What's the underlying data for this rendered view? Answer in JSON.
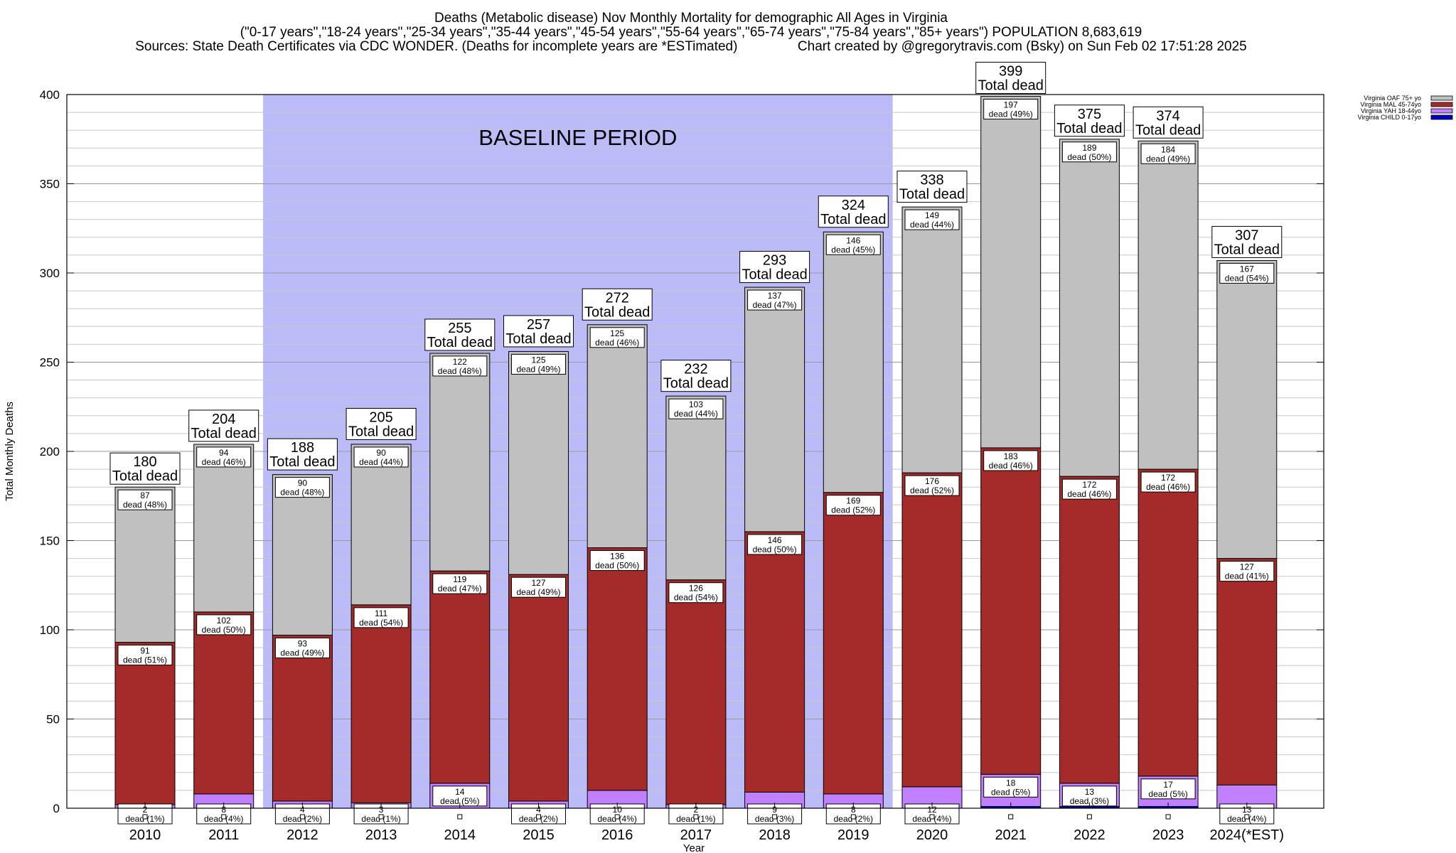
{
  "title_lines": [
    "Deaths (Metabolic disease) Nov Monthly Mortality for demographic All Ages in Virginia",
    "(\"0-17 years\",\"18-24 years\",\"25-34 years\",\"35-44 years\",\"45-54 years\",\"55-64 years\",\"65-74 years\",\"75-84 years\",\"85+ years\") POPULATION 8,683,619",
    "Sources: State Death Certificates via CDC WONDER. (Deaths for incomplete years are *ESTimated)                Chart created by @gregorytravis.com (Bsky) on Sun Feb 02 17:51:28 2025"
  ],
  "baseline_label": "BASELINE PERIOD",
  "total_label": "Total dead",
  "dead_word": "dead",
  "colors": {
    "oaf": "#c0c0c0",
    "mal": "#a52a2a",
    "yah": "#c080ff",
    "child": "#0000c0",
    "baseline": "#bbbbf8",
    "grid": "#c8c8c8"
  },
  "chart_data": {
    "type": "bar",
    "stacked": true,
    "xlabel": "Year",
    "ylabel": "Total Monthly Deaths",
    "ylim": [
      0,
      400
    ],
    "yticks": [
      0,
      50,
      100,
      150,
      200,
      250,
      300,
      350,
      400
    ],
    "grid": true,
    "legend_position": "top-right",
    "baseline_period": [
      "2012",
      "2019"
    ],
    "categories": [
      "2010",
      "2011",
      "2012",
      "2013",
      "2014",
      "2015",
      "2016",
      "2017",
      "2018",
      "2019",
      "2020",
      "2021",
      "2022",
      "2023",
      "2024(*EST)"
    ],
    "totals": [
      180,
      204,
      188,
      205,
      255,
      257,
      272,
      232,
      293,
      324,
      338,
      399,
      375,
      374,
      307
    ],
    "series": [
      {
        "name": "Virginia CHILD 0-17yo",
        "values": [
          0,
          0,
          0,
          0,
          0,
          0,
          0,
          0,
          0,
          0,
          0,
          1,
          1,
          1,
          0
        ]
      },
      {
        "name": "Virginia YAH 18-44yo",
        "values": [
          2,
          8,
          4,
          3,
          14,
          4,
          10,
          2,
          9,
          8,
          12,
          18,
          13,
          17,
          13
        ],
        "pct": [
          1,
          4,
          2,
          1,
          5,
          2,
          4,
          1,
          3,
          2,
          4,
          5,
          3,
          5,
          4
        ]
      },
      {
        "name": "Virginia MAL 45-74yo",
        "values": [
          91,
          102,
          93,
          111,
          119,
          127,
          136,
          126,
          146,
          169,
          176,
          183,
          172,
          172,
          127
        ],
        "pct": [
          51,
          50,
          49,
          54,
          47,
          49,
          50,
          54,
          50,
          52,
          52,
          46,
          46,
          46,
          41
        ]
      },
      {
        "name": "Virginia OAF 75+ yo",
        "values": [
          87,
          94,
          90,
          90,
          122,
          125,
          125,
          103,
          137,
          146,
          149,
          197,
          189,
          184,
          167
        ],
        "pct": [
          48,
          46,
          48,
          44,
          48,
          49,
          46,
          44,
          47,
          45,
          44,
          49,
          50,
          49,
          54
        ]
      }
    ]
  }
}
